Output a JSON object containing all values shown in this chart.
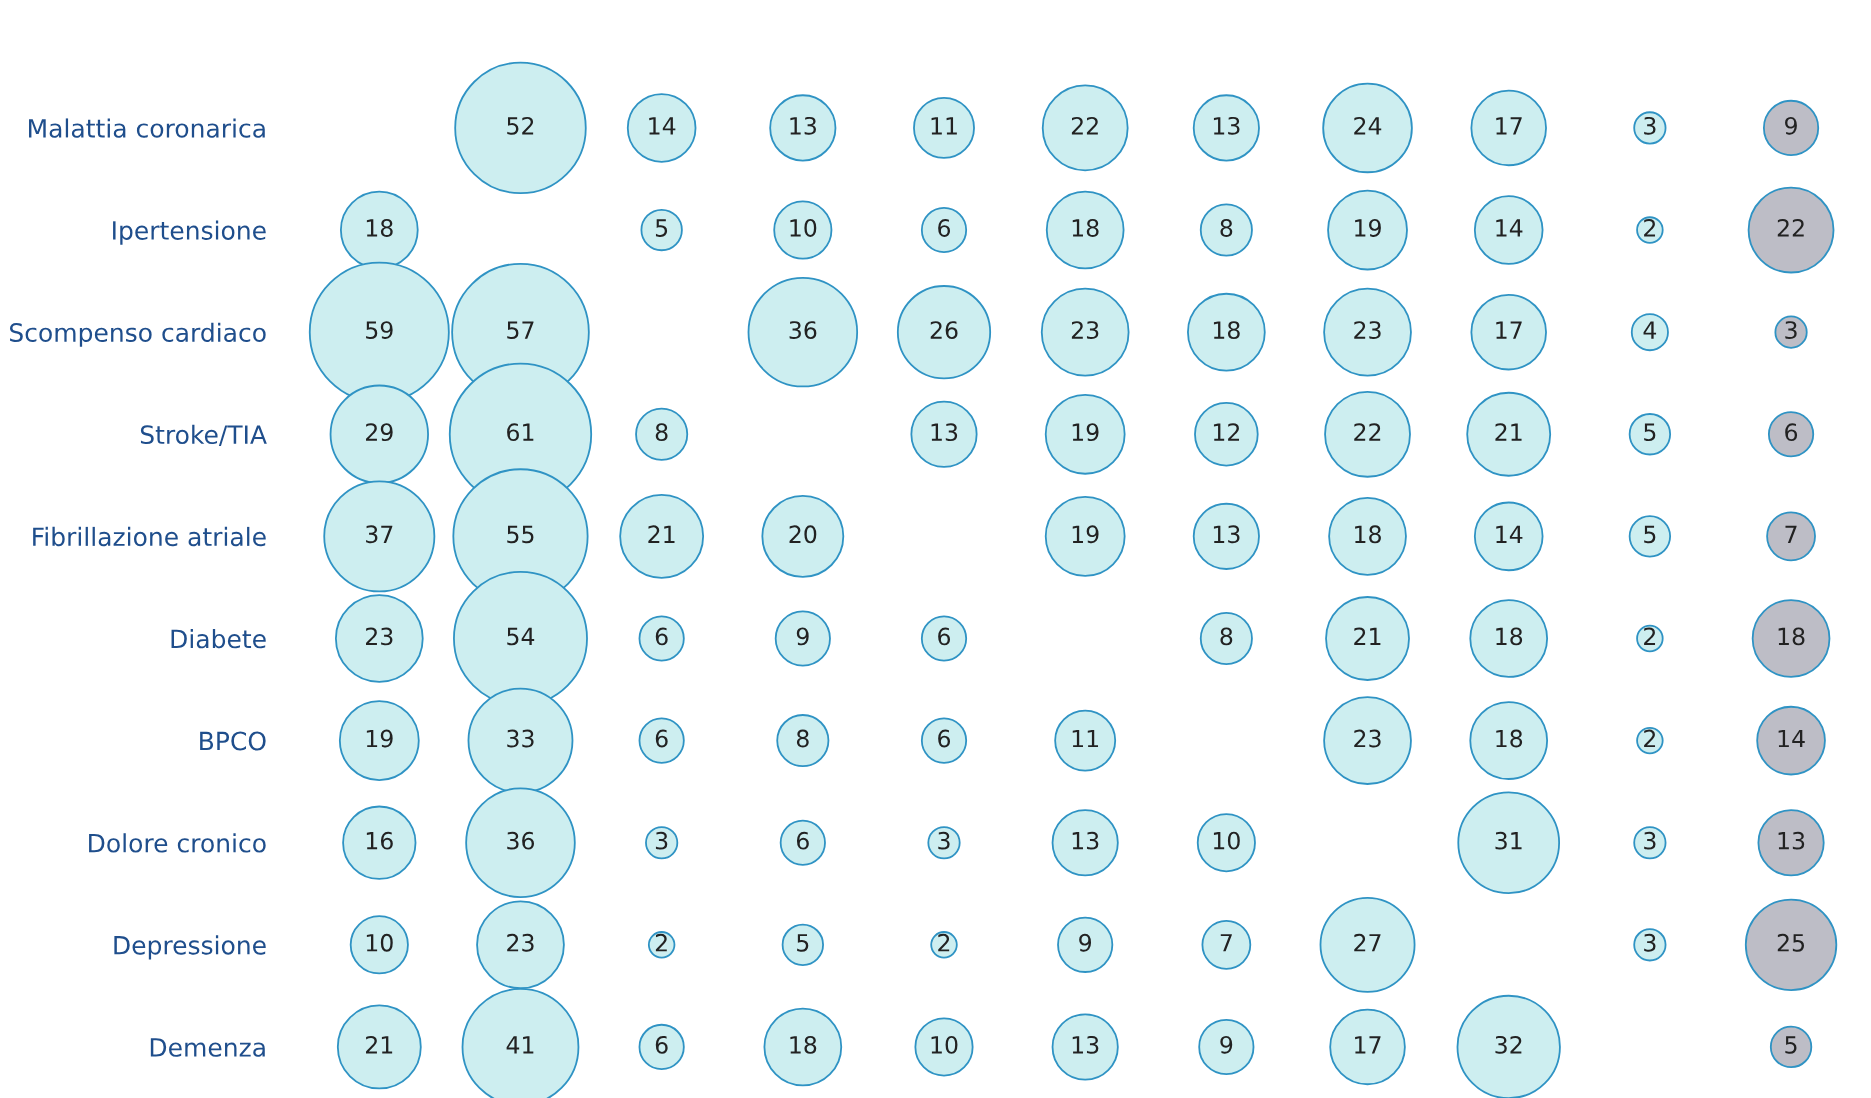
{
  "chart_data": {
    "type": "other",
    "categories": [
      "Malattia coronarica",
      "Ipertensione",
      "Scompenso cardiaco",
      "Stroke/TIA",
      "Fibrillazione atriale",
      "Diabete",
      "BPCO",
      "Dolore cronico",
      "Depressione",
      "Demenza"
    ],
    "series": [
      {
        "color": "#cdeef0",
        "values": [
          null,
          18,
          59,
          29,
          37,
          23,
          19,
          16,
          10,
          21
        ]
      },
      {
        "color": "#cdeef0",
        "values": [
          52,
          null,
          57,
          61,
          55,
          54,
          33,
          36,
          23,
          41
        ]
      },
      {
        "color": "#cdeef0",
        "values": [
          14,
          5,
          null,
          8,
          21,
          6,
          6,
          3,
          2,
          6
        ]
      },
      {
        "color": "#cdeef0",
        "values": [
          13,
          10,
          36,
          null,
          20,
          9,
          8,
          6,
          5,
          18
        ]
      },
      {
        "color": "#cdeef0",
        "values": [
          11,
          6,
          26,
          13,
          null,
          6,
          6,
          3,
          2,
          10
        ]
      },
      {
        "color": "#cdeef0",
        "values": [
          22,
          18,
          23,
          19,
          19,
          null,
          11,
          13,
          9,
          13
        ]
      },
      {
        "color": "#cdeef0",
        "values": [
          13,
          8,
          18,
          12,
          13,
          8,
          null,
          10,
          7,
          9
        ]
      },
      {
        "color": "#cdeef0",
        "values": [
          24,
          19,
          23,
          22,
          18,
          21,
          23,
          null,
          27,
          17
        ]
      },
      {
        "color": "#cdeef0",
        "values": [
          17,
          14,
          17,
          21,
          14,
          18,
          18,
          31,
          null,
          32
        ]
      },
      {
        "color": "#cdeef0",
        "values": [
          3,
          2,
          4,
          5,
          5,
          2,
          2,
          3,
          3,
          null
        ]
      },
      {
        "color": "#bdbdc6",
        "values": [
          9,
          22,
          3,
          6,
          7,
          18,
          14,
          13,
          25,
          5
        ]
      }
    ],
    "data_labels": true
  }
}
